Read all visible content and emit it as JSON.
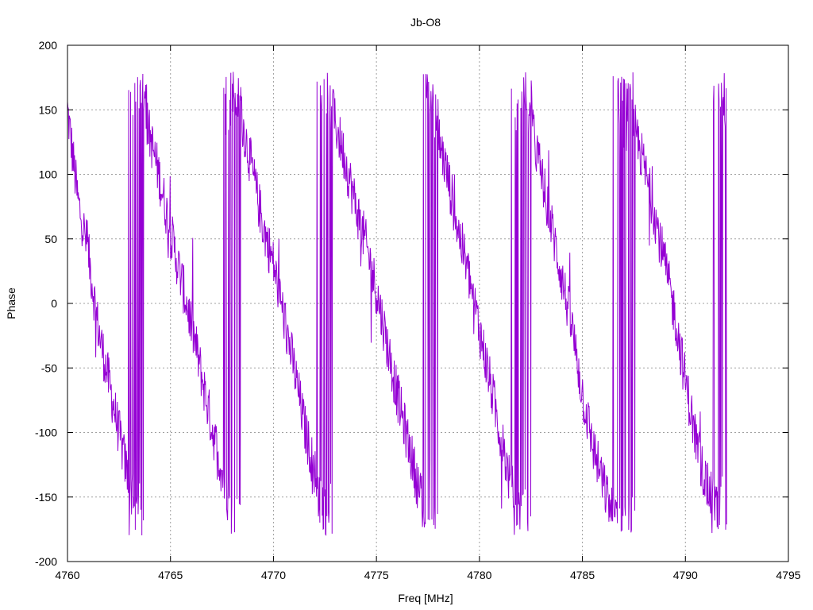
{
  "chart_data": {
    "type": "line",
    "title": "Jb-O8",
    "xlabel": "Freq [MHz]",
    "ylabel": "Phase",
    "xlim": [
      4760,
      4795
    ],
    "ylim": [
      -200,
      200
    ],
    "xticks": [
      4760,
      4765,
      4770,
      4775,
      4780,
      4785,
      4790,
      4795
    ],
    "yticks": [
      -200,
      -150,
      -100,
      -50,
      0,
      50,
      100,
      150,
      200
    ],
    "grid": true,
    "legend": "none",
    "series": [
      {
        "color": "#9400d3",
        "x_range": [
          4760,
          4792
        ],
        "sawtooth": {
          "phase_at_start": 150,
          "wraps_at_freq": [
            4763.4,
            4768.0,
            4772.5,
            4777.6,
            4782.1,
            4787.1,
            4791.7
          ],
          "noise_amplitude_deg": 20
        },
        "samples": [
          [
            4760.0,
            150
          ],
          [
            4760.5,
            80
          ],
          [
            4761.0,
            40
          ],
          [
            4761.5,
            -20
          ],
          [
            4762.0,
            -60
          ],
          [
            4762.5,
            -100
          ],
          [
            4763.0,
            -140
          ],
          [
            4763.4,
            -170
          ],
          [
            4763.5,
            165
          ],
          [
            4764.0,
            130
          ],
          [
            4764.5,
            95
          ],
          [
            4765.0,
            55
          ],
          [
            4765.5,
            20
          ],
          [
            4766.0,
            -15
          ],
          [
            4766.5,
            -55
          ],
          [
            4767.0,
            -95
          ],
          [
            4767.5,
            -130
          ],
          [
            4768.0,
            -165
          ],
          [
            4768.1,
            170
          ],
          [
            4768.5,
            140
          ],
          [
            4769.0,
            100
          ],
          [
            4769.5,
            60
          ],
          [
            4770.0,
            30
          ],
          [
            4770.5,
            -10
          ],
          [
            4771.0,
            -50
          ],
          [
            4771.5,
            -95
          ],
          [
            4772.0,
            -130
          ],
          [
            4772.5,
            -160
          ],
          [
            4772.6,
            165
          ],
          [
            4773.0,
            140
          ],
          [
            4773.5,
            110
          ],
          [
            4774.0,
            75
          ],
          [
            4774.5,
            45
          ],
          [
            4775.0,
            10
          ],
          [
            4775.5,
            -30
          ],
          [
            4776.0,
            -70
          ],
          [
            4776.5,
            -105
          ],
          [
            4777.0,
            -140
          ],
          [
            4777.5,
            -170
          ],
          [
            4777.7,
            165
          ],
          [
            4778.0,
            130
          ],
          [
            4778.5,
            95
          ],
          [
            4779.0,
            55
          ],
          [
            4779.5,
            20
          ],
          [
            4780.0,
            -20
          ],
          [
            4780.5,
            -60
          ],
          [
            4781.0,
            -100
          ],
          [
            4781.5,
            -140
          ],
          [
            4782.0,
            -165
          ],
          [
            4782.2,
            165
          ],
          [
            4782.5,
            140
          ],
          [
            4783.0,
            100
          ],
          [
            4783.5,
            60
          ],
          [
            4784.0,
            20
          ],
          [
            4784.5,
            -20
          ],
          [
            4785.0,
            -70
          ],
          [
            4785.5,
            -110
          ],
          [
            4786.0,
            -140
          ],
          [
            4786.5,
            -165
          ],
          [
            4787.1,
            -175
          ],
          [
            4787.2,
            160
          ],
          [
            4787.5,
            140
          ],
          [
            4788.0,
            105
          ],
          [
            4788.5,
            70
          ],
          [
            4789.0,
            30
          ],
          [
            4789.5,
            -10
          ],
          [
            4790.0,
            -60
          ],
          [
            4790.5,
            -105
          ],
          [
            4791.0,
            -140
          ],
          [
            4791.5,
            -160
          ],
          [
            4791.7,
            170
          ],
          [
            4792.0,
            150
          ]
        ]
      }
    ]
  }
}
